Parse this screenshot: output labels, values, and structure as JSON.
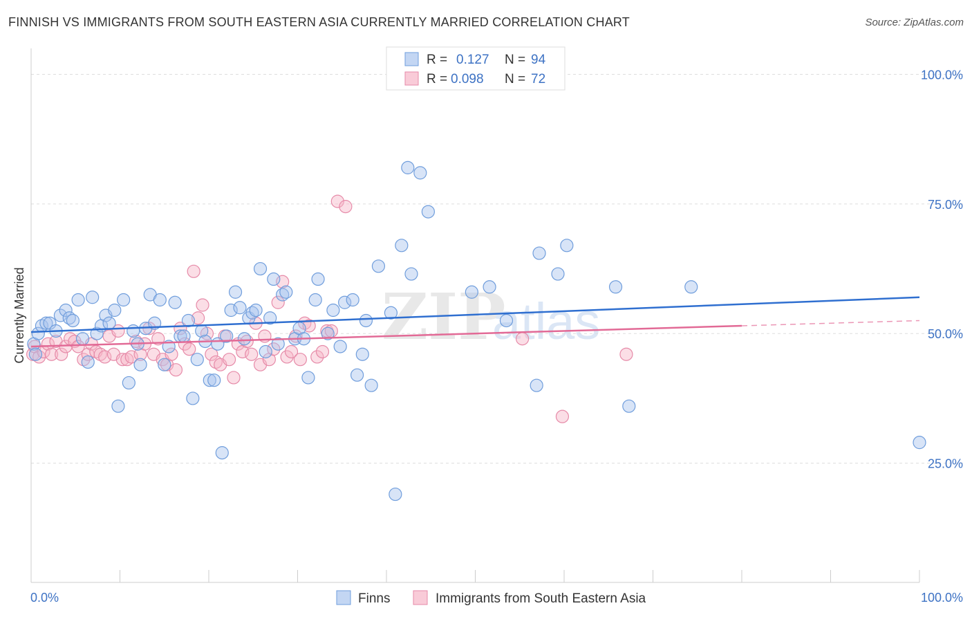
{
  "title": "FINNISH VS IMMIGRANTS FROM SOUTH EASTERN ASIA CURRENTLY MARRIED CORRELATION CHART",
  "source": "Source: ZipAtlas.com",
  "watermark": {
    "zip": "ZIP",
    "atlas": "atlas"
  },
  "legend_top": [
    {
      "r_label": "R =",
      "r_value": "0.127",
      "n_label": "N =",
      "n_value": "94"
    },
    {
      "r_label": "R =",
      "r_value": "0.098",
      "n_label": "N =",
      "n_value": "72"
    }
  ],
  "legend_bottom": [
    {
      "label": "Finns"
    },
    {
      "label": "Immigrants from South Eastern Asia"
    }
  ],
  "colors": {
    "blue_fill": "#a9c4ee",
    "blue_stroke": "#6f9ddc",
    "blue_line": "#2f6fd0",
    "pink_fill": "#f6b5c8",
    "pink_stroke": "#e68aa8",
    "pink_line": "#e26a96",
    "tick_text": "#3d72c4",
    "grid": "#dddddd"
  },
  "chart_data": {
    "type": "scatter",
    "title": "FINNISH VS IMMIGRANTS FROM SOUTH EASTERN ASIA CURRENTLY MARRIED CORRELATION CHART",
    "xlabel": "",
    "ylabel": "Currently Married",
    "xlim": [
      0,
      100
    ],
    "ylim": [
      2,
      105
    ],
    "x_tick_labels": [
      "0.0%",
      "100.0%"
    ],
    "y_ticks": [
      25,
      50,
      75,
      100
    ],
    "y_tick_labels": [
      "25.0%",
      "50.0%",
      "75.0%",
      "100.0%"
    ],
    "grid": true,
    "legend_position": "top-center",
    "series": [
      {
        "name": "Finns",
        "r": 0.127,
        "n": 94,
        "trend": {
          "x": [
            0,
            100
          ],
          "y": [
            50.3,
            57.0
          ]
        },
        "points": [
          [
            0.3,
            48
          ],
          [
            0.5,
            46
          ],
          [
            0.8,
            50
          ],
          [
            1.2,
            51.5
          ],
          [
            1.7,
            52
          ],
          [
            2.1,
            52
          ],
          [
            2.8,
            50.5
          ],
          [
            3.3,
            53.5
          ],
          [
            3.9,
            54.5
          ],
          [
            4.3,
            53
          ],
          [
            4.7,
            52.5
          ],
          [
            5.3,
            56.5
          ],
          [
            5.8,
            49
          ],
          [
            6.4,
            44.5
          ],
          [
            6.9,
            57
          ],
          [
            7.4,
            50
          ],
          [
            7.9,
            51.5
          ],
          [
            8.4,
            53.5
          ],
          [
            8.8,
            52
          ],
          [
            9.4,
            54.5
          ],
          [
            9.8,
            36
          ],
          [
            10.4,
            56.5
          ],
          [
            11.0,
            40.5
          ],
          [
            11.5,
            50.5
          ],
          [
            12.0,
            48
          ],
          [
            12.3,
            44
          ],
          [
            12.9,
            51
          ],
          [
            13.4,
            57.5
          ],
          [
            13.9,
            52
          ],
          [
            14.5,
            56.5
          ],
          [
            15.0,
            44
          ],
          [
            15.5,
            47.5
          ],
          [
            16.2,
            56
          ],
          [
            16.8,
            49.5
          ],
          [
            17.2,
            49.5
          ],
          [
            17.7,
            52.5
          ],
          [
            18.2,
            37.5
          ],
          [
            18.7,
            45
          ],
          [
            19.2,
            50.5
          ],
          [
            19.6,
            48.5
          ],
          [
            20.1,
            41
          ],
          [
            20.6,
            41
          ],
          [
            21.0,
            48
          ],
          [
            21.5,
            27
          ],
          [
            22.0,
            49.5
          ],
          [
            22.5,
            54.5
          ],
          [
            23.0,
            58
          ],
          [
            23.5,
            55
          ],
          [
            24.0,
            49
          ],
          [
            24.5,
            53
          ],
          [
            24.9,
            54
          ],
          [
            25.3,
            54.5
          ],
          [
            25.8,
            62.5
          ],
          [
            26.4,
            46.5
          ],
          [
            26.9,
            53
          ],
          [
            27.3,
            60.5
          ],
          [
            27.8,
            48
          ],
          [
            28.3,
            57.5
          ],
          [
            28.7,
            58
          ],
          [
            29.7,
            49
          ],
          [
            30.2,
            51
          ],
          [
            30.7,
            49
          ],
          [
            31.2,
            41.5
          ],
          [
            32.0,
            56.5
          ],
          [
            32.3,
            60.5
          ],
          [
            33.4,
            50
          ],
          [
            34.0,
            54.5
          ],
          [
            34.8,
            47.5
          ],
          [
            35.3,
            56
          ],
          [
            36.2,
            56.5
          ],
          [
            36.7,
            42
          ],
          [
            37.3,
            46
          ],
          [
            37.7,
            52.5
          ],
          [
            38.3,
            40
          ],
          [
            39.1,
            63
          ],
          [
            40.5,
            54
          ],
          [
            41.7,
            67
          ],
          [
            42.4,
            82
          ],
          [
            42.8,
            61.5
          ],
          [
            43.8,
            81
          ],
          [
            44.7,
            73.5
          ],
          [
            49.6,
            58
          ],
          [
            51.6,
            59
          ],
          [
            53.5,
            52.5
          ],
          [
            56.9,
            40
          ],
          [
            57.2,
            65.5
          ],
          [
            59.3,
            61.5
          ],
          [
            60.3,
            67
          ],
          [
            65.8,
            59
          ],
          [
            67.3,
            36
          ],
          [
            74.3,
            59
          ],
          [
            100,
            29
          ],
          [
            41.0,
            19
          ]
        ]
      },
      {
        "name": "Immigrants from South Eastern Asia",
        "r": 0.098,
        "n": 72,
        "trend": {
          "x": [
            0,
            80
          ],
          "y": [
            47.5,
            51.5
          ]
        },
        "trend_dashed": {
          "x": [
            80,
            100
          ],
          "y": [
            51.5,
            52.5
          ]
        },
        "points": [
          [
            0.2,
            46
          ],
          [
            0.4,
            47.5
          ],
          [
            0.9,
            45.5
          ],
          [
            1.4,
            46.5
          ],
          [
            1.9,
            48
          ],
          [
            2.3,
            46
          ],
          [
            2.8,
            48.5
          ],
          [
            3.4,
            46
          ],
          [
            3.9,
            47.5
          ],
          [
            4.4,
            49
          ],
          [
            4.9,
            48.5
          ],
          [
            5.3,
            47.5
          ],
          [
            5.9,
            45
          ],
          [
            6.4,
            46
          ],
          [
            6.8,
            48
          ],
          [
            7.3,
            46.5
          ],
          [
            7.8,
            46
          ],
          [
            8.3,
            45.5
          ],
          [
            8.8,
            49.5
          ],
          [
            9.3,
            46
          ],
          [
            9.8,
            50.5
          ],
          [
            10.3,
            45
          ],
          [
            10.8,
            45
          ],
          [
            11.3,
            45.5
          ],
          [
            11.8,
            48.5
          ],
          [
            12.3,
            46
          ],
          [
            12.8,
            48
          ],
          [
            13.3,
            51
          ],
          [
            13.8,
            46
          ],
          [
            14.3,
            49
          ],
          [
            14.8,
            45
          ],
          [
            15.3,
            44
          ],
          [
            15.8,
            46
          ],
          [
            16.3,
            43
          ],
          [
            16.8,
            51
          ],
          [
            17.3,
            48
          ],
          [
            17.8,
            47
          ],
          [
            18.3,
            62
          ],
          [
            18.8,
            53
          ],
          [
            19.3,
            55.5
          ],
          [
            19.8,
            50
          ],
          [
            20.3,
            46
          ],
          [
            20.8,
            44.5
          ],
          [
            21.3,
            44
          ],
          [
            21.8,
            49.5
          ],
          [
            22.3,
            45
          ],
          [
            22.8,
            41.5
          ],
          [
            23.3,
            48
          ],
          [
            23.8,
            46.5
          ],
          [
            24.3,
            48.5
          ],
          [
            24.8,
            46
          ],
          [
            25.3,
            52
          ],
          [
            25.8,
            44
          ],
          [
            26.3,
            49.5
          ],
          [
            26.8,
            45
          ],
          [
            27.3,
            47
          ],
          [
            27.8,
            56
          ],
          [
            28.3,
            60
          ],
          [
            28.8,
            45.5
          ],
          [
            29.3,
            46.5
          ],
          [
            29.8,
            49.5
          ],
          [
            30.3,
            45
          ],
          [
            30.8,
            52
          ],
          [
            31.3,
            51.5
          ],
          [
            32.2,
            45.5
          ],
          [
            32.8,
            46.5
          ],
          [
            33.3,
            50.5
          ],
          [
            33.8,
            50.5
          ],
          [
            34.5,
            75.5
          ],
          [
            35.4,
            74.5
          ],
          [
            55.3,
            49
          ],
          [
            59.8,
            34
          ],
          [
            67.0,
            46
          ]
        ]
      }
    ]
  }
}
